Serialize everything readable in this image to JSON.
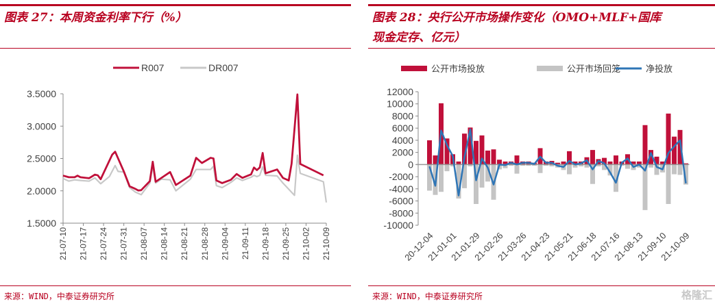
{
  "left": {
    "title": "图表 27：本周资金利率下行（%）",
    "source": "来源：WIND，中泰证券研究所"
  },
  "right": {
    "title_line1": "图表 28：央行公开市场操作变化（OMO+MLF+国库",
    "title_line2": "现金定存、亿元）",
    "source": "来源：WIND，中泰证券研究所",
    "watermark": "格隆汇"
  },
  "colors": {
    "accent": "#b8001f",
    "r007": "#c0103a",
    "dr007": "#c8c8c8",
    "injection": "#c0103a",
    "maturity": "#c4c4c4",
    "net": "#2e75b6"
  },
  "chart_data": [
    {
      "type": "line",
      "title": "",
      "legend_position": "top",
      "grid": false,
      "ylim": [
        1.5,
        3.5
      ],
      "yticks": [
        "1.5000",
        "2.0000",
        "2.5000",
        "3.0000",
        "3.5000"
      ],
      "xlim": [
        "2021-07-10",
        "2021-10-09"
      ],
      "xticks": [
        "21-07-10",
        "21-07-17",
        "21-07-24",
        "21-07-31",
        "21-08-07",
        "21-08-14",
        "21-08-21",
        "21-08-28",
        "21-09-04",
        "21-09-11",
        "21-09-18",
        "21-09-25",
        "21-10-02",
        "21-10-09"
      ],
      "series": [
        {
          "name": "R007",
          "x": [
            "2021-07-10",
            "2021-07-12",
            "2021-07-14",
            "2021-07-15",
            "2021-07-16",
            "2021-07-19",
            "2021-07-21",
            "2021-07-22",
            "2021-07-23",
            "2021-07-27",
            "2021-07-28",
            "2021-07-31",
            "2021-08-02",
            "2021-08-04",
            "2021-08-05",
            "2021-08-06",
            "2021-08-09",
            "2021-08-10",
            "2021-08-11",
            "2021-08-13",
            "2021-08-16",
            "2021-08-18",
            "2021-08-23",
            "2021-08-25",
            "2021-08-27",
            "2021-08-30",
            "2021-08-31",
            "2021-09-01",
            "2021-09-03",
            "2021-09-06",
            "2021-09-08",
            "2021-09-10",
            "2021-09-13",
            "2021-09-14",
            "2021-09-15",
            "2021-09-16",
            "2021-09-17",
            "2021-09-18",
            "2021-09-22",
            "2021-09-24",
            "2021-09-26",
            "2021-09-27",
            "2021-09-29",
            "2021-09-30",
            "2021-10-08"
          ],
          "values": [
            2.235,
            2.21,
            2.21,
            2.235,
            2.21,
            2.195,
            2.25,
            2.24,
            2.18,
            2.56,
            2.605,
            2.3,
            2.07,
            2.03,
            2.005,
            2.01,
            2.15,
            2.45,
            2.14,
            2.2,
            2.29,
            2.09,
            2.235,
            2.51,
            2.43,
            2.51,
            2.5,
            2.16,
            2.12,
            2.17,
            2.26,
            2.2,
            2.255,
            2.36,
            2.32,
            2.36,
            2.585,
            2.27,
            2.33,
            2.2,
            2.16,
            2.42,
            3.49,
            2.415,
            2.24
          ]
        },
        {
          "name": "DR007",
          "x": [
            "2021-07-10",
            "2021-07-12",
            "2021-07-14",
            "2021-07-16",
            "2021-07-19",
            "2021-07-21",
            "2021-07-23",
            "2021-07-26",
            "2021-07-28",
            "2021-07-29",
            "2021-07-31",
            "2021-08-02",
            "2021-08-04",
            "2021-08-06",
            "2021-08-09",
            "2021-08-10",
            "2021-08-11",
            "2021-08-13",
            "2021-08-16",
            "2021-08-18",
            "2021-08-23",
            "2021-08-25",
            "2021-08-30",
            "2021-08-31",
            "2021-09-01",
            "2021-09-03",
            "2021-09-06",
            "2021-09-08",
            "2021-09-10",
            "2021-09-13",
            "2021-09-14",
            "2021-09-15",
            "2021-09-16",
            "2021-09-17",
            "2021-09-18",
            "2021-09-22",
            "2021-09-24",
            "2021-09-28",
            "2021-09-29",
            "2021-09-30",
            "2021-10-08",
            "2021-10-09"
          ],
          "values": [
            2.19,
            2.15,
            2.17,
            2.16,
            2.15,
            2.2,
            2.11,
            2.22,
            2.39,
            2.3,
            2.29,
            2.05,
            1.98,
            1.94,
            2.12,
            2.38,
            2.12,
            2.18,
            2.17,
            2.0,
            2.18,
            2.33,
            2.33,
            2.38,
            2.08,
            2.05,
            2.13,
            2.2,
            2.16,
            2.21,
            2.24,
            2.22,
            2.24,
            2.37,
            2.24,
            2.23,
            2.12,
            1.93,
            2.55,
            2.27,
            2.14,
            1.82
          ]
        }
      ]
    },
    {
      "type": "bar",
      "title": "",
      "legend_position": "top",
      "grid": false,
      "ylim": [
        -10000,
        12000
      ],
      "yticks": [
        "-10000",
        "-8000",
        "-6000",
        "-4000",
        "-2000",
        "0",
        "2000",
        "4000",
        "6000",
        "8000",
        "10000",
        "12000"
      ],
      "xticks": [
        "20-12-04",
        "21-01-01",
        "21-01-29",
        "21-02-26",
        "21-03-26",
        "21-04-23",
        "21-05-21",
        "21-06-18",
        "21-07-16",
        "21-08-13",
        "21-09-10",
        "21-10-09"
      ],
      "series": [
        {
          "name": "公开市场投放",
          "type": "bar",
          "values": [
            4000,
            1500,
            10100,
            4300,
            1700,
            500,
            5100,
            6100,
            3900,
            4800,
            2300,
            2500,
            800,
            500,
            500,
            1500,
            500,
            500,
            300,
            2700,
            500,
            600,
            300,
            500,
            2200,
            500,
            500,
            1200,
            2400,
            900,
            1100,
            500,
            1500,
            500,
            1700,
            500,
            500,
            6500,
            2400,
            1300,
            500,
            8400,
            4600,
            5700,
            200
          ]
        },
        {
          "name": "公开市场回笼",
          "type": "bar",
          "values": [
            -4300,
            -5000,
            -4500,
            -1100,
            -300,
            -5600,
            -3900,
            -300,
            -6500,
            -3800,
            -2800,
            -5800,
            -800,
            -600,
            -200,
            -1500,
            -200,
            -200,
            -200,
            -1400,
            -200,
            -300,
            -500,
            -900,
            -1600,
            -500,
            -300,
            -500,
            -3200,
            -300,
            -900,
            -1800,
            -4500,
            -200,
            -700,
            -900,
            -500,
            -7500,
            -500,
            -1700,
            -1300,
            -6500,
            -1600,
            -1700,
            -3300
          ]
        },
        {
          "name": "净投放",
          "type": "line",
          "values": [
            -300,
            -3500,
            5600,
            3200,
            1400,
            -5100,
            1200,
            5800,
            -2600,
            1000,
            -500,
            -3300,
            0,
            -100,
            300,
            0,
            300,
            300,
            100,
            1300,
            300,
            300,
            -200,
            -400,
            600,
            0,
            200,
            700,
            -800,
            600,
            200,
            -1300,
            -3000,
            300,
            1000,
            -400,
            0,
            -1000,
            1900,
            -400,
            -800,
            1900,
            3000,
            4000,
            -3100
          ]
        }
      ]
    }
  ]
}
